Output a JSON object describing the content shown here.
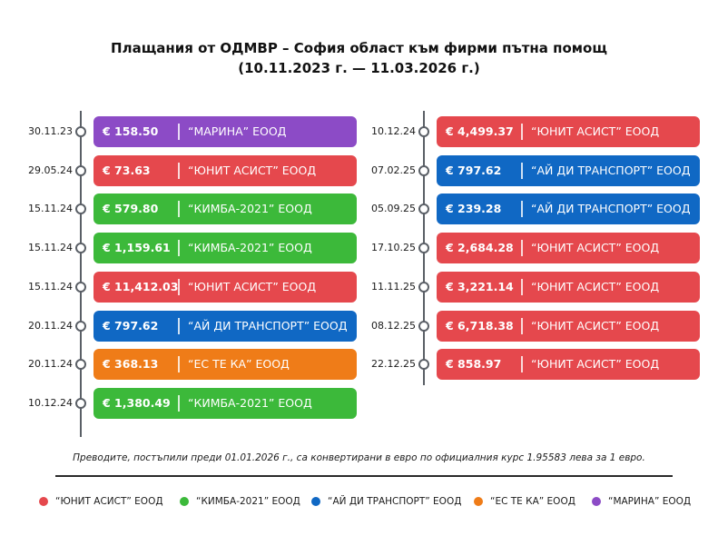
{
  "title_line1": "Плащания от ОДМВР – София област към фирми пътна помощ",
  "title_line2": "(10.11.2023 г. — 11.03.2026 г.)",
  "colors": {
    "ЮНИТ АСИСТ": "#e5484d",
    "КИМБА-2021": "#3cb93a",
    "АЙ ДИ ТРАНСПОРТ": "#1068c4",
    "ЕС ТЕ КА": "#ef7c18",
    "МАРИНА": "#8c4bc6"
  },
  "chart_data": {
    "type": "table",
    "columns": [
      [
        {
          "date": "30.11.23",
          "amount": "€ 158.50",
          "firm": "“МАРИНА” ЕООД",
          "key": "МАРИНА"
        },
        {
          "date": "29.05.24",
          "amount": "€ 73.63",
          "firm": "“ЮНИТ АСИСТ” ЕООД",
          "key": "ЮНИТ АСИСТ"
        },
        {
          "date": "15.11.24",
          "amount": "€ 579.80",
          "firm": "“КИМБА-2021” ЕООД",
          "key": "КИМБА-2021"
        },
        {
          "date": "15.11.24",
          "amount": "€ 1,159.61",
          "firm": "“КИМБА-2021” ЕООД",
          "key": "КИМБА-2021"
        },
        {
          "date": "15.11.24",
          "amount": "€ 11,412.03",
          "firm": "“ЮНИТ АСИСТ” ЕООД",
          "key": "ЮНИТ АСИСТ"
        },
        {
          "date": "20.11.24",
          "amount": "€ 797.62",
          "firm": "“АЙ ДИ ТРАНСПОРТ” ЕООД",
          "key": "АЙ ДИ ТРАНСПОРТ"
        },
        {
          "date": "20.11.24",
          "amount": "€ 368.13",
          "firm": "“ЕС ТЕ КА” ЕООД",
          "key": "ЕС ТЕ КА"
        },
        {
          "date": "10.12.24",
          "amount": "€ 1,380.49",
          "firm": "“КИМБА-2021” ЕООД",
          "key": "КИМБА-2021"
        }
      ],
      [
        {
          "date": "10.12.24",
          "amount": "€ 4,499.37",
          "firm": "“ЮНИТ АСИСТ” ЕООД",
          "key": "ЮНИТ АСИСТ"
        },
        {
          "date": "07.02.25",
          "amount": "€ 797.62",
          "firm": "“АЙ ДИ ТРАНСПОРТ” ЕООД",
          "key": "АЙ ДИ ТРАНСПОРТ"
        },
        {
          "date": "05.09.25",
          "amount": "€ 239.28",
          "firm": "“АЙ ДИ ТРАНСПОРТ” ЕООД",
          "key": "АЙ ДИ ТРАНСПОРТ"
        },
        {
          "date": "17.10.25",
          "amount": "€ 2,684.28",
          "firm": "“ЮНИТ АСИСТ” ЕООД",
          "key": "ЮНИТ АСИСТ"
        },
        {
          "date": "11.11.25",
          "amount": "€ 3,221.14",
          "firm": "“ЮНИТ АСИСТ” ЕООД",
          "key": "ЮНИТ АСИСТ"
        },
        {
          "date": "08.12.25",
          "amount": "€ 6,718.38",
          "firm": "“ЮНИТ АСИСТ” ЕООД",
          "key": "ЮНИТ АСИСТ"
        },
        {
          "date": "22.12.25",
          "amount": "€ 858.97",
          "firm": "“ЮНИТ АСИСТ” ЕООД",
          "key": "ЮНИТ АСИСТ"
        }
      ]
    ],
    "legend": [
      {
        "label": "“ЮНИТ АСИСТ” ЕООД",
        "key": "ЮНИТ АСИСТ"
      },
      {
        "label": "“КИМБА-2021” ЕООД",
        "key": "КИМБА-2021"
      },
      {
        "label": "“АЙ ДИ ТРАНСПОРТ” ЕООД",
        "key": "АЙ ДИ ТРАНСПОРТ"
      },
      {
        "label": "“ЕС ТЕ КА” ЕООД",
        "key": "ЕС ТЕ КА"
      },
      {
        "label": "“МАРИНА” ЕООД",
        "key": "МАРИНА"
      }
    ]
  },
  "footnote": "Преводите, постъпили преди 01.01.2026 г., са конвертирани в евро по официалния курс 1.95583 лева за 1 евро."
}
